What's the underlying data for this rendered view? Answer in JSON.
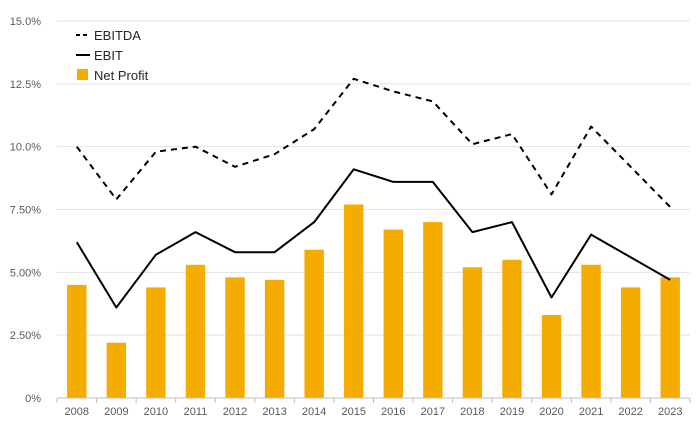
{
  "chart_data": {
    "type": "bar",
    "categories": [
      "2008",
      "2009",
      "2010",
      "2011",
      "2012",
      "2013",
      "2014",
      "2015",
      "2016",
      "2017",
      "2018",
      "2019",
      "2020",
      "2021",
      "2022",
      "2023"
    ],
    "series": [
      {
        "name": "EBITDA",
        "kind": "line",
        "style": "dashed",
        "color": "#000000",
        "values": [
          10.0,
          7.9,
          9.8,
          10.0,
          9.2,
          9.7,
          10.7,
          12.7,
          12.2,
          11.8,
          10.1,
          10.5,
          8.1,
          10.8,
          9.2,
          7.6
        ]
      },
      {
        "name": "EBIT",
        "kind": "line",
        "style": "solid",
        "color": "#000000",
        "values": [
          6.2,
          3.6,
          5.7,
          6.6,
          5.8,
          5.8,
          7.0,
          9.1,
          8.6,
          8.6,
          6.6,
          7.0,
          4.0,
          6.5,
          5.6,
          4.7
        ]
      },
      {
        "name": "Net Profit",
        "kind": "bar",
        "color": "#F5AC00",
        "values": [
          4.5,
          2.2,
          4.4,
          5.3,
          4.8,
          4.7,
          5.9,
          7.7,
          6.7,
          7.0,
          5.2,
          5.5,
          3.3,
          5.3,
          4.4,
          4.8
        ]
      }
    ],
    "y_ticks": [
      "0%",
      "2.50%",
      "5.00%",
      "7.50%",
      "10.0%",
      "12.5%",
      "15.0%"
    ],
    "ylim": [
      0,
      15
    ],
    "grid": true,
    "legend_position": "top-left",
    "title": "",
    "xlabel": "",
    "ylabel": ""
  }
}
